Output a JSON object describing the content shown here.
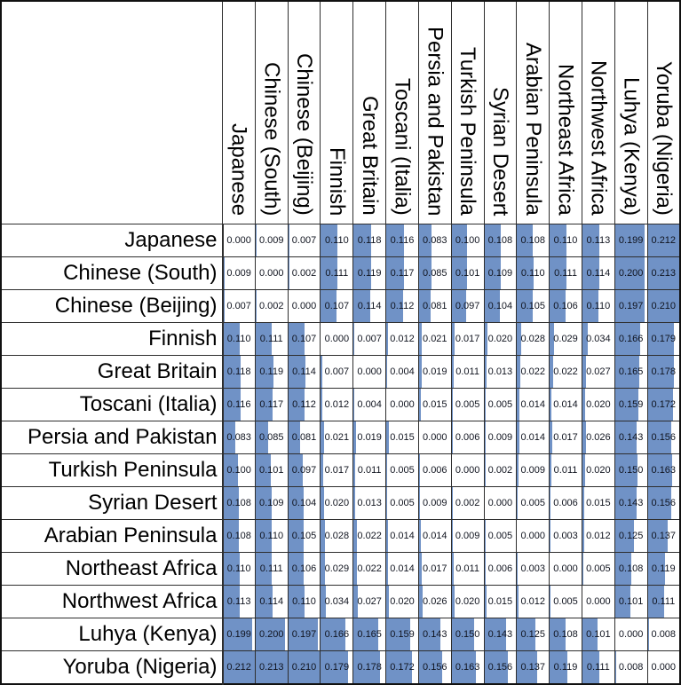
{
  "chart_data": {
    "type": "heatmap",
    "subtype": "distance-matrix-with-data-bars",
    "labels": [
      "Japanese",
      "Chinese (South)",
      "Chinese (Beijing)",
      "Finnish",
      "Great Britain",
      "Toscani (Italia)",
      "Persia and Pakistan",
      "Turkish Peninsula",
      "Syrian Desert",
      "Arabian Peninsula",
      "Northeast Africa",
      "Northwest Africa",
      "Luhya (Kenya)",
      "Yoruba (Nigeria)"
    ],
    "matrix": [
      [
        0.0,
        0.009,
        0.007,
        0.11,
        0.118,
        0.116,
        0.083,
        0.1,
        0.108,
        0.108,
        0.11,
        0.113,
        0.199,
        0.212
      ],
      [
        0.009,
        0.0,
        0.002,
        0.111,
        0.119,
        0.117,
        0.085,
        0.101,
        0.109,
        0.11,
        0.111,
        0.114,
        0.2,
        0.213
      ],
      [
        0.007,
        0.002,
        0.0,
        0.107,
        0.114,
        0.112,
        0.081,
        0.097,
        0.104,
        0.105,
        0.106,
        0.11,
        0.197,
        0.21
      ],
      [
        0.11,
        0.111,
        0.107,
        0.0,
        0.007,
        0.012,
        0.021,
        0.017,
        0.02,
        0.028,
        0.029,
        0.034,
        0.166,
        0.179
      ],
      [
        0.118,
        0.119,
        0.114,
        0.007,
        0.0,
        0.004,
        0.019,
        0.011,
        0.013,
        0.022,
        0.022,
        0.027,
        0.165,
        0.178
      ],
      [
        0.116,
        0.117,
        0.112,
        0.012,
        0.004,
        0.0,
        0.015,
        0.005,
        0.005,
        0.014,
        0.014,
        0.02,
        0.159,
        0.172
      ],
      [
        0.083,
        0.085,
        0.081,
        0.021,
        0.019,
        0.015,
        0.0,
        0.006,
        0.009,
        0.014,
        0.017,
        0.026,
        0.143,
        0.156
      ],
      [
        0.1,
        0.101,
        0.097,
        0.017,
        0.011,
        0.005,
        0.006,
        0.0,
        0.002,
        0.009,
        0.011,
        0.02,
        0.15,
        0.163
      ],
      [
        0.108,
        0.109,
        0.104,
        0.02,
        0.013,
        0.005,
        0.009,
        0.002,
        0.0,
        0.005,
        0.006,
        0.015,
        0.143,
        0.156
      ],
      [
        0.108,
        0.11,
        0.105,
        0.028,
        0.022,
        0.014,
        0.014,
        0.009,
        0.005,
        0.0,
        0.003,
        0.012,
        0.125,
        0.137
      ],
      [
        0.11,
        0.111,
        0.106,
        0.029,
        0.022,
        0.014,
        0.017,
        0.011,
        0.006,
        0.003,
        0.0,
        0.005,
        0.108,
        0.119
      ],
      [
        0.113,
        0.114,
        0.11,
        0.034,
        0.027,
        0.02,
        0.026,
        0.02,
        0.015,
        0.012,
        0.005,
        0.0,
        0.101,
        0.111
      ],
      [
        0.199,
        0.2,
        0.197,
        0.166,
        0.165,
        0.159,
        0.143,
        0.15,
        0.143,
        0.125,
        0.108,
        0.101,
        0.0,
        0.008
      ],
      [
        0.212,
        0.213,
        0.21,
        0.179,
        0.178,
        0.172,
        0.156,
        0.163,
        0.156,
        0.137,
        0.119,
        0.111,
        0.008,
        0.0
      ]
    ],
    "value_decimals": 3,
    "bar_color": "#7092c6",
    "bar_scale_max": 0.213,
    "grid": true,
    "grid_color": "#2e2e2e",
    "legend_position": "none",
    "col_header_rotation_deg": 90
  }
}
